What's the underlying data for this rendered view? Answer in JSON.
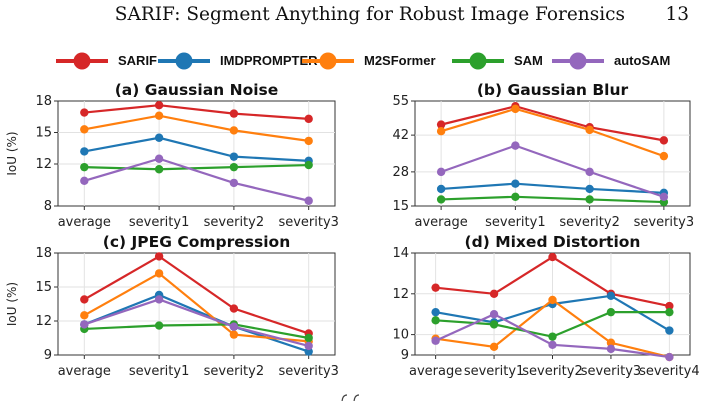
{
  "page": {
    "title": "SARIF: Segment Anything for Robust Image Forensics",
    "page_number": "13"
  },
  "colors": {
    "SARIF": "#d62728",
    "IMDPROMPTER": "#1f77b4",
    "M2SFormer": "#ff7f0e",
    "SAM": "#2ca02c",
    "autoSAM": "#9467bd"
  },
  "legend": [
    "SARIF",
    "IMDPROMPTER",
    "M2SFormer",
    "SAM",
    "autoSAM"
  ],
  "chart_data": [
    {
      "type": "line",
      "title": "(a) Gaussian Noise",
      "ylabel": "IoU (%)",
      "xlabel": "",
      "categories": [
        "average",
        "severity1",
        "severity2",
        "severity3"
      ],
      "yticks": [
        "8",
        "12",
        "15",
        "18"
      ],
      "ylim": [
        8,
        18
      ],
      "grid": true,
      "series": [
        {
          "name": "SARIF",
          "values": [
            16.9,
            17.6,
            16.8,
            16.3
          ]
        },
        {
          "name": "IMDPROMPTER",
          "values": [
            13.2,
            14.5,
            12.7,
            12.3
          ]
        },
        {
          "name": "M2SFormer",
          "values": [
            15.3,
            16.6,
            15.2,
            14.2
          ]
        },
        {
          "name": "SAM",
          "values": [
            11.7,
            11.5,
            11.7,
            11.9
          ]
        },
        {
          "name": "autoSAM",
          "values": [
            10.4,
            12.5,
            10.2,
            8.5
          ]
        }
      ]
    },
    {
      "type": "line",
      "title": "(b) Gaussian Blur",
      "ylabel": "",
      "xlabel": "",
      "categories": [
        "average",
        "severity1",
        "severity2",
        "severity3"
      ],
      "yticks": [
        "15",
        "28",
        "42",
        "55"
      ],
      "ylim": [
        15,
        55
      ],
      "grid": true,
      "series": [
        {
          "name": "SARIF",
          "values": [
            46,
            53,
            45,
            40
          ]
        },
        {
          "name": "IMDPROMPTER",
          "values": [
            21.5,
            23.5,
            21.5,
            20
          ]
        },
        {
          "name": "M2SFormer",
          "values": [
            43.5,
            52,
            44,
            34
          ]
        },
        {
          "name": "SAM",
          "values": [
            17.5,
            18.5,
            17.5,
            16.5
          ]
        },
        {
          "name": "autoSAM",
          "values": [
            28,
            38,
            28,
            18.5
          ]
        }
      ]
    },
    {
      "type": "line",
      "title": "(c) JPEG Compression",
      "ylabel": "IoU (%)",
      "xlabel": "",
      "categories": [
        "average",
        "severity1",
        "severity2",
        "severity3"
      ],
      "yticks": [
        "9",
        "12",
        "15",
        "18"
      ],
      "ylim": [
        9,
        18
      ],
      "grid": true,
      "series": [
        {
          "name": "SARIF",
          "values": [
            13.9,
            17.7,
            13.1,
            10.9
          ]
        },
        {
          "name": "IMDPROMPTER",
          "values": [
            11.7,
            14.3,
            11.5,
            9.3
          ]
        },
        {
          "name": "M2SFormer",
          "values": [
            12.5,
            16.2,
            10.8,
            10.2
          ]
        },
        {
          "name": "SAM",
          "values": [
            11.3,
            11.6,
            11.7,
            10.5
          ]
        },
        {
          "name": "autoSAM",
          "values": [
            11.7,
            13.9,
            11.5,
            9.8
          ]
        }
      ]
    },
    {
      "type": "line",
      "title": "(d) Mixed Distortion",
      "ylabel": "",
      "xlabel": "",
      "categories": [
        "average",
        "severity1",
        "severity2",
        "severity3",
        "severity4"
      ],
      "yticks": [
        "9",
        "10",
        "12",
        "14"
      ],
      "ylim": [
        9,
        14
      ],
      "grid": true,
      "series": [
        {
          "name": "SARIF",
          "values": [
            12.3,
            12.0,
            13.8,
            12.0,
            11.4
          ]
        },
        {
          "name": "IMDPROMPTER",
          "values": [
            11.1,
            10.6,
            11.5,
            11.9,
            10.2
          ]
        },
        {
          "name": "M2SFormer",
          "values": [
            9.8,
            9.4,
            11.7,
            9.6,
            8.9
          ]
        },
        {
          "name": "SAM",
          "values": [
            10.7,
            10.5,
            9.9,
            11.1,
            11.1
          ]
        },
        {
          "name": "autoSAM",
          "values": [
            9.7,
            11.0,
            9.5,
            9.3,
            8.9
          ]
        }
      ]
    }
  ]
}
